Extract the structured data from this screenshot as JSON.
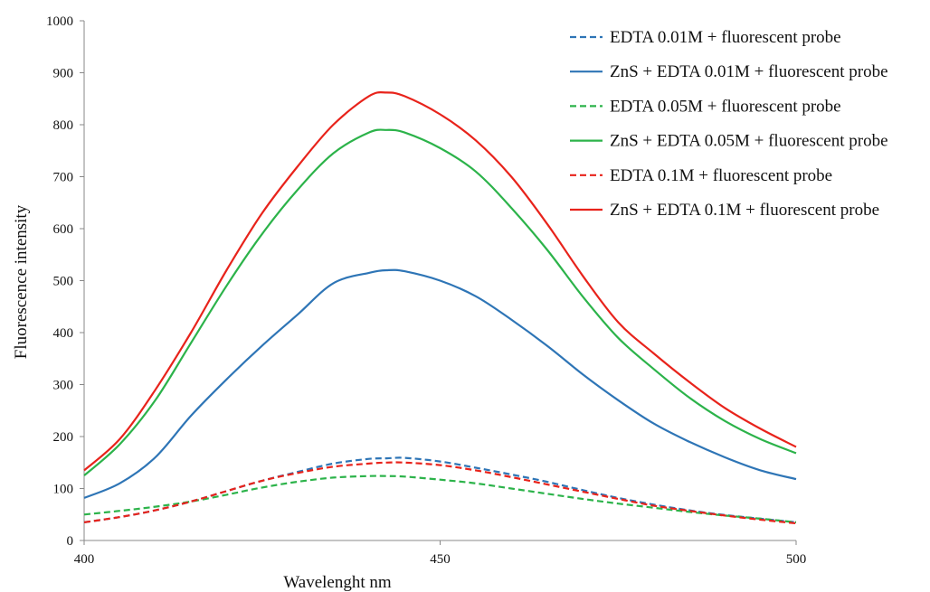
{
  "chart_data": {
    "type": "line",
    "title": "",
    "xlabel": "Wavelenght  nm",
    "ylabel": "Fluorescence intensity",
    "xlim": [
      400,
      500
    ],
    "ylim": [
      0,
      1000
    ],
    "x_ticks": [
      400,
      450,
      500
    ],
    "y_ticks": [
      0,
      100,
      200,
      300,
      400,
      500,
      600,
      700,
      800,
      900,
      1000
    ],
    "grid": false,
    "legend_position": "top-right",
    "x": [
      400,
      405,
      410,
      415,
      420,
      425,
      430,
      435,
      440,
      442.5,
      445,
      450,
      455,
      460,
      465,
      470,
      475,
      480,
      485,
      490,
      495,
      500
    ],
    "series": [
      {
        "name": "EDTA 0.01M + fluorescent probe",
        "color": "#2E75B6",
        "dash": "dashed",
        "values": [
          35,
          45,
          58,
          75,
          95,
          115,
          132,
          148,
          157,
          158,
          159,
          152,
          140,
          127,
          113,
          97,
          82,
          69,
          58,
          49,
          42,
          35
        ]
      },
      {
        "name": "ZnS + EDTA 0.01M + fluorescent probe",
        "color": "#2E75B6",
        "dash": "solid",
        "values": [
          82,
          110,
          160,
          240,
          310,
          375,
          435,
          495,
          515,
          520,
          518,
          500,
          470,
          425,
          375,
          320,
          270,
          225,
          190,
          160,
          135,
          118
        ]
      },
      {
        "name": "EDTA 0.05M + fluorescent probe",
        "color": "#2CB34A",
        "dash": "dashed",
        "values": [
          50,
          57,
          65,
          75,
          88,
          102,
          113,
          121,
          124,
          124,
          123,
          117,
          110,
          100,
          90,
          80,
          71,
          63,
          55,
          48,
          42,
          35
        ]
      },
      {
        "name": "ZnS + EDTA 0.05M + fluorescent probe",
        "color": "#2CB34A",
        "dash": "solid",
        "values": [
          125,
          185,
          270,
          380,
          490,
          590,
          675,
          745,
          785,
          790,
          785,
          755,
          710,
          640,
          560,
          470,
          390,
          330,
          275,
          230,
          195,
          168
        ]
      },
      {
        "name": "EDTA 0.1M + fluorescent probe",
        "color": "#E8231B",
        "dash": "dashed",
        "values": [
          35,
          45,
          58,
          75,
          95,
          115,
          130,
          142,
          148,
          150,
          150,
          145,
          135,
          122,
          108,
          94,
          80,
          67,
          57,
          48,
          40,
          33
        ]
      },
      {
        "name": "ZnS + EDTA 0.1M + fluorescent probe",
        "color": "#E8231B",
        "dash": "solid",
        "values": [
          135,
          195,
          290,
          400,
          520,
          630,
          720,
          800,
          855,
          862,
          855,
          820,
          770,
          700,
          610,
          510,
          420,
          360,
          305,
          255,
          215,
          180
        ]
      }
    ]
  }
}
